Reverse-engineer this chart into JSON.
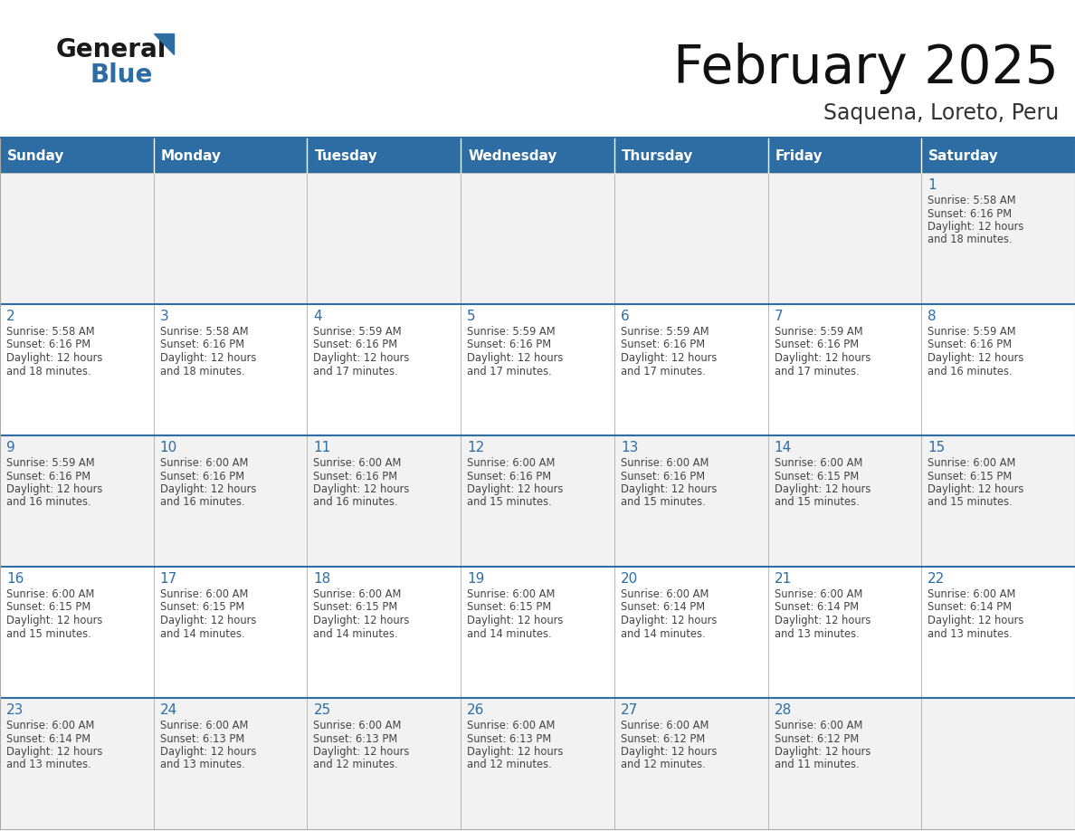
{
  "title": "February 2025",
  "subtitle": "Saquena, Loreto, Peru",
  "header_bg_color": "#2E6DA4",
  "header_text_color": "#FFFFFF",
  "cell_bg_row0": "#F2F2F2",
  "cell_bg_row1": "#FFFFFF",
  "cell_bg_row2": "#F2F2F2",
  "cell_bg_row3": "#FFFFFF",
  "cell_bg_row4": "#F2F2F2",
  "day_num_color": "#2E6DA4",
  "info_text_color": "#444444",
  "border_color": "#AAAAAA",
  "line_color": "#2E6DA4",
  "days_of_week": [
    "Sunday",
    "Monday",
    "Tuesday",
    "Wednesday",
    "Thursday",
    "Friday",
    "Saturday"
  ],
  "calendar": [
    [
      null,
      null,
      null,
      null,
      null,
      null,
      1
    ],
    [
      2,
      3,
      4,
      5,
      6,
      7,
      8
    ],
    [
      9,
      10,
      11,
      12,
      13,
      14,
      15
    ],
    [
      16,
      17,
      18,
      19,
      20,
      21,
      22
    ],
    [
      23,
      24,
      25,
      26,
      27,
      28,
      null
    ]
  ],
  "sun_data": {
    "1": {
      "rise": "5:58 AM",
      "set": "6:16 PM",
      "hours": "12",
      "minutes": "18"
    },
    "2": {
      "rise": "5:58 AM",
      "set": "6:16 PM",
      "hours": "12",
      "minutes": "18"
    },
    "3": {
      "rise": "5:58 AM",
      "set": "6:16 PM",
      "hours": "12",
      "minutes": "18"
    },
    "4": {
      "rise": "5:59 AM",
      "set": "6:16 PM",
      "hours": "12",
      "minutes": "17"
    },
    "5": {
      "rise": "5:59 AM",
      "set": "6:16 PM",
      "hours": "12",
      "minutes": "17"
    },
    "6": {
      "rise": "5:59 AM",
      "set": "6:16 PM",
      "hours": "12",
      "minutes": "17"
    },
    "7": {
      "rise": "5:59 AM",
      "set": "6:16 PM",
      "hours": "12",
      "minutes": "17"
    },
    "8": {
      "rise": "5:59 AM",
      "set": "6:16 PM",
      "hours": "12",
      "minutes": "16"
    },
    "9": {
      "rise": "5:59 AM",
      "set": "6:16 PM",
      "hours": "12",
      "minutes": "16"
    },
    "10": {
      "rise": "6:00 AM",
      "set": "6:16 PM",
      "hours": "12",
      "minutes": "16"
    },
    "11": {
      "rise": "6:00 AM",
      "set": "6:16 PM",
      "hours": "12",
      "minutes": "16"
    },
    "12": {
      "rise": "6:00 AM",
      "set": "6:16 PM",
      "hours": "12",
      "minutes": "15"
    },
    "13": {
      "rise": "6:00 AM",
      "set": "6:16 PM",
      "hours": "12",
      "minutes": "15"
    },
    "14": {
      "rise": "6:00 AM",
      "set": "6:15 PM",
      "hours": "12",
      "minutes": "15"
    },
    "15": {
      "rise": "6:00 AM",
      "set": "6:15 PM",
      "hours": "12",
      "minutes": "15"
    },
    "16": {
      "rise": "6:00 AM",
      "set": "6:15 PM",
      "hours": "12",
      "minutes": "15"
    },
    "17": {
      "rise": "6:00 AM",
      "set": "6:15 PM",
      "hours": "12",
      "minutes": "14"
    },
    "18": {
      "rise": "6:00 AM",
      "set": "6:15 PM",
      "hours": "12",
      "minutes": "14"
    },
    "19": {
      "rise": "6:00 AM",
      "set": "6:15 PM",
      "hours": "12",
      "minutes": "14"
    },
    "20": {
      "rise": "6:00 AM",
      "set": "6:14 PM",
      "hours": "12",
      "minutes": "14"
    },
    "21": {
      "rise": "6:00 AM",
      "set": "6:14 PM",
      "hours": "12",
      "minutes": "13"
    },
    "22": {
      "rise": "6:00 AM",
      "set": "6:14 PM",
      "hours": "12",
      "minutes": "13"
    },
    "23": {
      "rise": "6:00 AM",
      "set": "6:14 PM",
      "hours": "12",
      "minutes": "13"
    },
    "24": {
      "rise": "6:00 AM",
      "set": "6:13 PM",
      "hours": "12",
      "minutes": "13"
    },
    "25": {
      "rise": "6:00 AM",
      "set": "6:13 PM",
      "hours": "12",
      "minutes": "12"
    },
    "26": {
      "rise": "6:00 AM",
      "set": "6:13 PM",
      "hours": "12",
      "minutes": "12"
    },
    "27": {
      "rise": "6:00 AM",
      "set": "6:12 PM",
      "hours": "12",
      "minutes": "12"
    },
    "28": {
      "rise": "6:00 AM",
      "set": "6:12 PM",
      "hours": "12",
      "minutes": "11"
    }
  },
  "logo_general_color": "#1a1a1a",
  "logo_blue_color": "#2E6DA4",
  "logo_triangle_color": "#2E6DA4"
}
